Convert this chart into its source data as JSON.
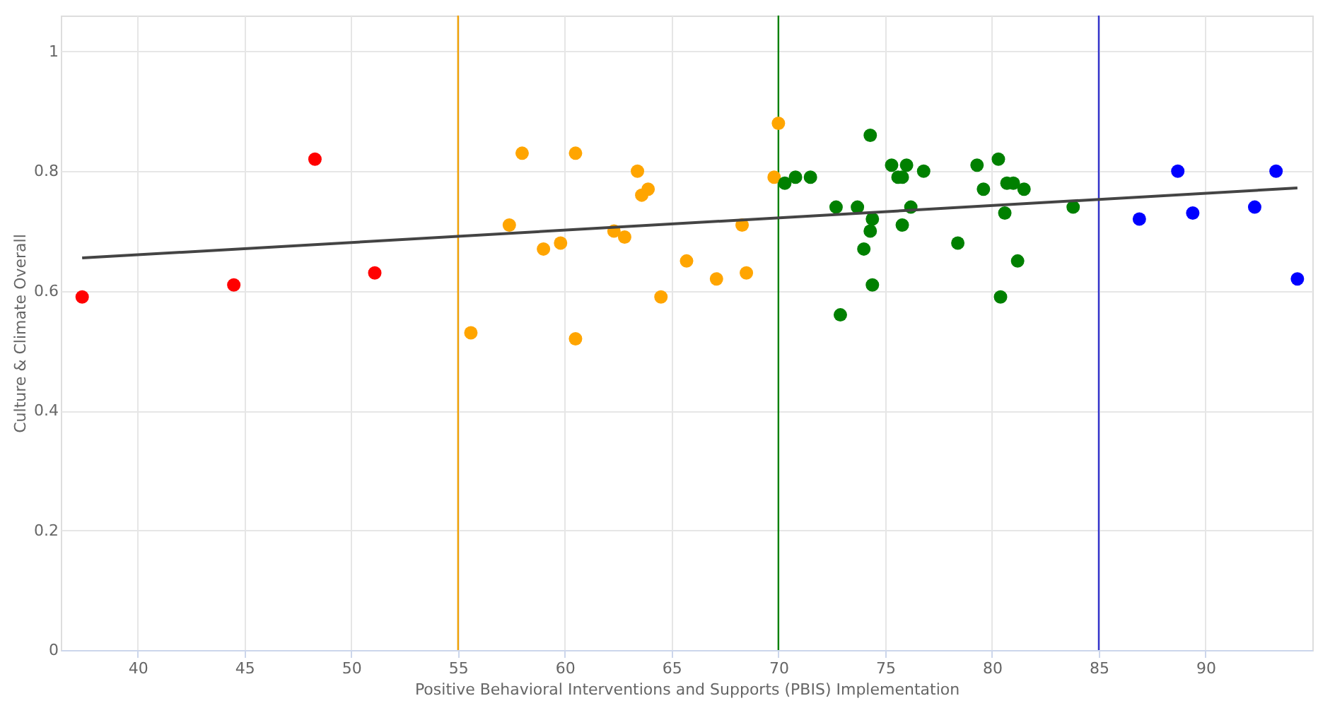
{
  "chart_data": {
    "type": "scatter",
    "xlabel": "Positive Behavioral Interventions and Supports (PBIS) Implementation",
    "ylabel": "Culture & Climate Overall",
    "xlim": [
      36.4,
      95
    ],
    "ylim": [
      0,
      1.06
    ],
    "xticks": [
      40,
      45,
      50,
      55,
      60,
      65,
      70,
      75,
      80,
      85,
      90
    ],
    "yticks": [
      0,
      0.2,
      0.4,
      0.6,
      0.8,
      1
    ],
    "grid": true,
    "marker": "circle",
    "series": [
      {
        "color": "#ff0000",
        "x": [
          37.4,
          44.5,
          48.3,
          51.1
        ],
        "values": [
          0.59,
          0.61,
          0.82,
          0.63
        ]
      },
      {
        "color": "#ffa500",
        "x": [
          55.6,
          57.4,
          58.0,
          59.0,
          59.8,
          60.5,
          60.5,
          62.3,
          62.8,
          63.4,
          63.6,
          63.9,
          64.5,
          65.7,
          67.1,
          68.3,
          68.5,
          69.8,
          70.0
        ],
        "values": [
          0.53,
          0.71,
          0.83,
          0.67,
          0.68,
          0.83,
          0.52,
          0.7,
          0.69,
          0.8,
          0.76,
          0.77,
          0.59,
          0.65,
          0.62,
          0.71,
          0.63,
          0.79,
          0.88
        ]
      },
      {
        "color": "#008000",
        "x": [
          70.3,
          70.8,
          71.5,
          72.7,
          72.9,
          73.7,
          74.0,
          74.3,
          74.4,
          74.3,
          74.4,
          75.3,
          75.6,
          75.8,
          76.0,
          75.8,
          76.2,
          76.8,
          78.4,
          79.3,
          79.6,
          80.3,
          80.4,
          80.6,
          80.7,
          81.0,
          81.2,
          81.5,
          83.8
        ],
        "values": [
          0.78,
          0.79,
          0.79,
          0.74,
          0.56,
          0.74,
          0.67,
          0.86,
          0.72,
          0.7,
          0.61,
          0.81,
          0.79,
          0.79,
          0.81,
          0.71,
          0.74,
          0.8,
          0.68,
          0.81,
          0.77,
          0.82,
          0.59,
          0.73,
          0.78,
          0.78,
          0.65,
          0.77,
          0.74
        ]
      },
      {
        "color": "#0000ff",
        "x": [
          86.9,
          88.7,
          89.4,
          92.3,
          93.3,
          94.3
        ],
        "values": [
          0.72,
          0.8,
          0.73,
          0.74,
          0.8,
          0.62
        ]
      },
      {
        "type": "line",
        "marker": "none",
        "line_style": "solid",
        "color": "#444444",
        "x": [
          37.4,
          94.3
        ],
        "values": [
          0.655,
          0.772
        ]
      }
    ],
    "ref_lines": [
      {
        "axis": "x",
        "value": 55,
        "color": "#f0a30a"
      },
      {
        "axis": "x",
        "value": 70,
        "color": "#008000"
      },
      {
        "axis": "x",
        "value": 85,
        "color": "#3333cc"
      }
    ]
  }
}
